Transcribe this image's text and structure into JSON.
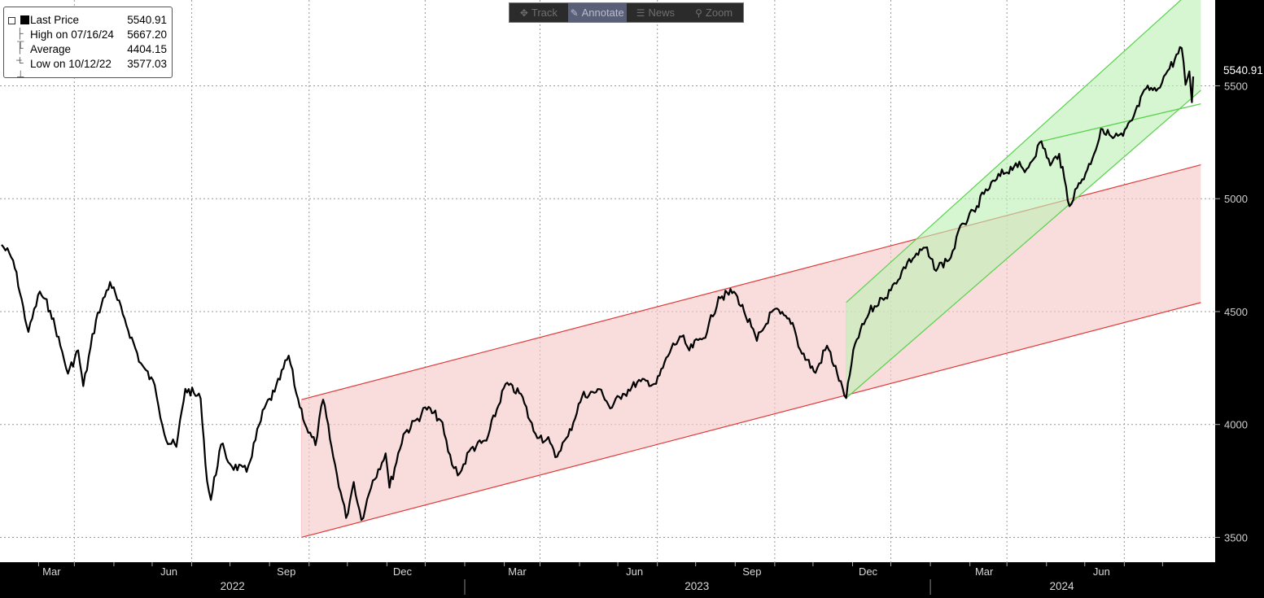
{
  "toolbar": {
    "items": [
      {
        "label": "Track",
        "icon": "crosshair-icon",
        "active": false
      },
      {
        "label": "Annotate",
        "icon": "pencil-icon",
        "active": true
      },
      {
        "label": "News",
        "icon": "news-icon",
        "active": false
      },
      {
        "label": "Zoom",
        "icon": "magnifier-icon",
        "active": false
      }
    ]
  },
  "legend": {
    "last_label": "Last Price",
    "last_value": "5540.91",
    "high_label": "High on 07/16/24",
    "high_value": "5667.20",
    "avg_label": "Average",
    "avg_value": "4404.15",
    "low_label": "Low on 10/12/22",
    "low_value": "3577.03"
  },
  "chart_data": {
    "type": "line",
    "background": "#ffffff",
    "panel_background": "#000000",
    "line_color": "#000000",
    "grid": true,
    "x_range": [
      "2022-01-03",
      "2024-07-25"
    ],
    "ylim": [
      3390,
      5880
    ],
    "y_ticks": [
      "3500",
      "4000",
      "4500",
      "5000",
      "5500"
    ],
    "last_price_label": "5540.91",
    "month_ticks": [
      {
        "date": "2022-03-01",
        "label": "Mar"
      },
      {
        "date": "2022-06-01",
        "label": "Jun"
      },
      {
        "date": "2022-09-01",
        "label": "Sep"
      },
      {
        "date": "2022-12-01",
        "label": "Dec"
      },
      {
        "date": "2023-03-01",
        "label": "Mar"
      },
      {
        "date": "2023-06-01",
        "label": "Jun"
      },
      {
        "date": "2023-09-01",
        "label": "Sep"
      },
      {
        "date": "2023-12-01",
        "label": "Dec"
      },
      {
        "date": "2024-03-01",
        "label": "Mar"
      },
      {
        "date": "2024-06-01",
        "label": "Jun"
      }
    ],
    "years": [
      {
        "label": "2022",
        "start": "2022-01-03",
        "end": "2022-12-31"
      },
      {
        "label": "2023",
        "start": "2023-01-01",
        "end": "2023-12-31"
      },
      {
        "label": "2024",
        "start": "2024-01-01",
        "end": "2024-07-25"
      }
    ],
    "series": [
      {
        "values": [
          [
            "2022-01-03",
            4796
          ],
          [
            "2022-01-12",
            4727
          ],
          [
            "2022-01-24",
            4410
          ],
          [
            "2022-02-02",
            4589
          ],
          [
            "2022-02-10",
            4504
          ],
          [
            "2022-02-18",
            4349
          ],
          [
            "2022-02-24",
            4225
          ],
          [
            "2022-03-04",
            4328
          ],
          [
            "2022-03-08",
            4170
          ],
          [
            "2022-03-18",
            4463
          ],
          [
            "2022-03-29",
            4631
          ],
          [
            "2022-04-08",
            4488
          ],
          [
            "2022-04-22",
            4272
          ],
          [
            "2022-05-03",
            4175
          ],
          [
            "2022-05-12",
            3930
          ],
          [
            "2022-05-20",
            3901
          ],
          [
            "2022-05-27",
            4158
          ],
          [
            "2022-06-08",
            4115
          ],
          [
            "2022-06-13",
            3750
          ],
          [
            "2022-06-16",
            3666
          ],
          [
            "2022-06-24",
            3911
          ],
          [
            "2022-07-01",
            3825
          ],
          [
            "2022-07-14",
            3790
          ],
          [
            "2022-07-28",
            4072
          ],
          [
            "2022-08-05",
            4145
          ],
          [
            "2022-08-16",
            4305
          ],
          [
            "2022-08-22",
            4137
          ],
          [
            "2022-08-30",
            3986
          ],
          [
            "2022-09-06",
            3908
          ],
          [
            "2022-09-12",
            4110
          ],
          [
            "2022-09-20",
            3856
          ],
          [
            "2022-09-30",
            3586
          ],
          [
            "2022-10-06",
            3745
          ],
          [
            "2022-10-12",
            3577
          ],
          [
            "2022-10-21",
            3752
          ],
          [
            "2022-10-31",
            3872
          ],
          [
            "2022-11-03",
            3720
          ],
          [
            "2022-11-14",
            3957
          ],
          [
            "2022-11-25",
            4026
          ],
          [
            "2022-12-01",
            4076
          ],
          [
            "2022-12-13",
            4019
          ],
          [
            "2022-12-22",
            3822
          ],
          [
            "2022-12-28",
            3783
          ],
          [
            "2023-01-06",
            3895
          ],
          [
            "2023-01-18",
            3928
          ],
          [
            "2023-02-02",
            4179
          ],
          [
            "2023-02-14",
            4136
          ],
          [
            "2023-02-24",
            3970
          ],
          [
            "2023-03-09",
            3918
          ],
          [
            "2023-03-13",
            3855
          ],
          [
            "2023-03-23",
            3948
          ],
          [
            "2023-04-03",
            4124
          ],
          [
            "2023-04-18",
            4154
          ],
          [
            "2023-04-25",
            4071
          ],
          [
            "2023-05-05",
            4136
          ],
          [
            "2023-05-19",
            4191
          ],
          [
            "2023-05-31",
            4180
          ],
          [
            "2023-06-12",
            4338
          ],
          [
            "2023-06-20",
            4389
          ],
          [
            "2023-06-26",
            4328
          ],
          [
            "2023-07-10",
            4409
          ],
          [
            "2023-07-19",
            4565
          ],
          [
            "2023-07-31",
            4588
          ],
          [
            "2023-08-08",
            4499
          ],
          [
            "2023-08-18",
            4370
          ],
          [
            "2023-08-31",
            4507
          ],
          [
            "2023-09-15",
            4450
          ],
          [
            "2023-09-21",
            4330
          ],
          [
            "2023-10-03",
            4229
          ],
          [
            "2023-10-12",
            4349
          ],
          [
            "2023-10-20",
            4224
          ],
          [
            "2023-10-27",
            4117
          ],
          [
            "2023-11-03",
            4358
          ],
          [
            "2023-11-14",
            4495
          ],
          [
            "2023-11-24",
            4559
          ],
          [
            "2023-12-01",
            4594
          ],
          [
            "2023-12-14",
            4719
          ],
          [
            "2023-12-28",
            4783
          ],
          [
            "2024-01-04",
            4688
          ],
          [
            "2024-01-17",
            4739
          ],
          [
            "2024-01-26",
            4890
          ],
          [
            "2024-02-05",
            4942
          ],
          [
            "2024-02-12",
            5021
          ],
          [
            "2024-02-22",
            5087
          ],
          [
            "2024-03-08",
            5157
          ],
          [
            "2024-03-15",
            5117
          ],
          [
            "2024-03-28",
            5254
          ],
          [
            "2024-04-04",
            5147
          ],
          [
            "2024-04-11",
            5199
          ],
          [
            "2024-04-19",
            4967
          ],
          [
            "2024-04-25",
            5048
          ],
          [
            "2024-05-03",
            5128
          ],
          [
            "2024-05-15",
            5308
          ],
          [
            "2024-05-23",
            5268
          ],
          [
            "2024-05-31",
            5278
          ],
          [
            "2024-06-07",
            5347
          ],
          [
            "2024-06-18",
            5487
          ],
          [
            "2024-06-26",
            5478
          ],
          [
            "2024-07-05",
            5567
          ],
          [
            "2024-07-16",
            5667
          ],
          [
            "2024-07-19",
            5505
          ],
          [
            "2024-07-22",
            5564
          ],
          [
            "2024-07-24",
            5427
          ],
          [
            "2024-07-25",
            5540.91
          ]
        ]
      }
    ],
    "channels": [
      {
        "color": "#e03a3a",
        "fill": "#f5c6c6",
        "from": "2022-08-26",
        "to": "2024-07-31",
        "upper": [
          4110,
          5150
        ],
        "lower": [
          3500,
          4540
        ]
      },
      {
        "color": "#5ad14d",
        "fill": "#bdf0b4",
        "from": "2023-10-27",
        "to": "2024-07-31",
        "upper": [
          4540,
          5960
        ],
        "lower": [
          4117,
          5480
        ]
      }
    ],
    "trendline": {
      "color": "#5ad14d",
      "from": [
        "2024-03-28",
        5254
      ],
      "to": [
        "2024-07-31",
        5420
      ]
    }
  }
}
